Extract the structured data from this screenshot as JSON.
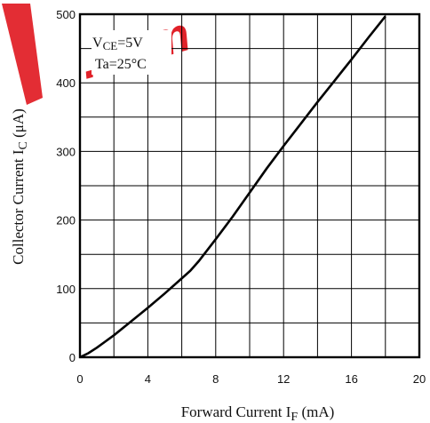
{
  "chart_data": {
    "type": "line",
    "title": "",
    "xlabel": {
      "main": "Forward Current I",
      "sub": "F",
      "unit": " (mA)"
    },
    "ylabel": {
      "main": "Collector Current I",
      "sub": "C",
      "unit": " (μA)"
    },
    "xlim": [
      0,
      20
    ],
    "ylim": [
      0,
      500
    ],
    "x_ticks": [
      0,
      4,
      8,
      12,
      16,
      20
    ],
    "y_ticks": [
      0,
      100,
      200,
      300,
      400,
      500
    ],
    "x_grid_step": 2,
    "y_grid_step": 50,
    "grid": true,
    "annotations": [
      {
        "main": "V",
        "sub": "CE",
        "rest": "=5V"
      },
      {
        "text": "Ta=25°C"
      }
    ],
    "watermark": ".com",
    "series": [
      {
        "x": [
          0,
          0.5,
          1,
          1.5,
          2,
          3,
          4,
          5,
          6,
          6.5,
          7,
          8,
          9,
          10,
          11,
          12,
          13,
          14,
          15,
          16,
          17,
          18
        ],
        "y": [
          0,
          6,
          14,
          23,
          32,
          52,
          72,
          93,
          115,
          126,
          140,
          172,
          205,
          240,
          275,
          308,
          340,
          372,
          403,
          434,
          466,
          497
        ]
      }
    ]
  },
  "colors": {
    "axis": "#000000",
    "grid": "#000000",
    "line": "#000000",
    "watermark": "#e0161e"
  }
}
